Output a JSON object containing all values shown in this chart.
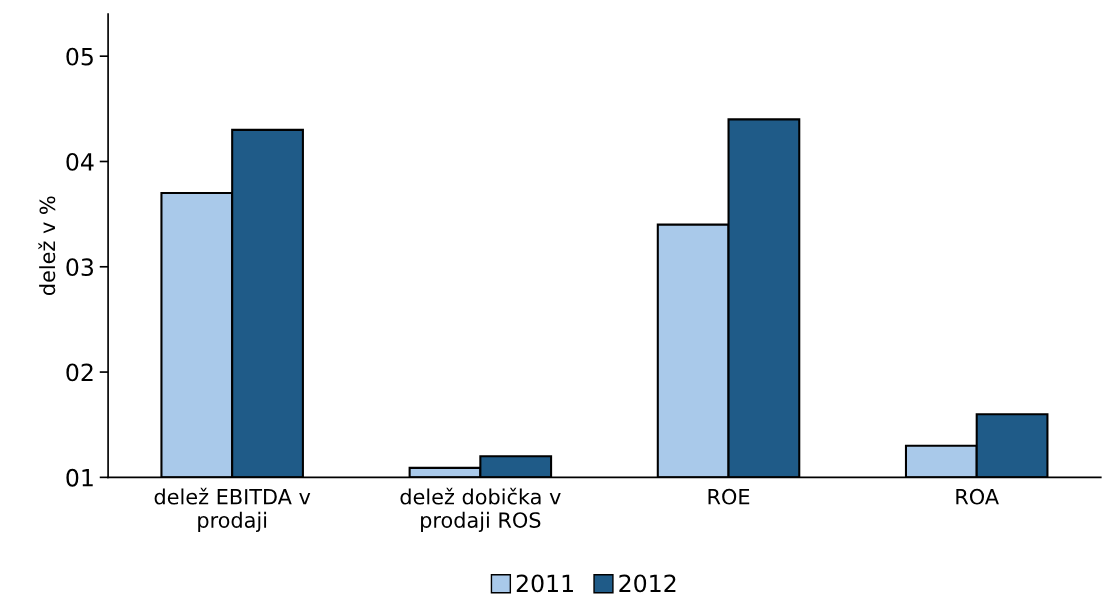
{
  "chart_data": {
    "type": "bar",
    "ylabel": "delež v %",
    "categories": [
      "delež EBITDA v\nprodaji",
      "delež dobička v\nprodaji ROS",
      "ROE",
      "ROA"
    ],
    "series": [
      {
        "name": "2011",
        "color": "#a9c9ea",
        "values": [
          3.7,
          1.09,
          3.4,
          1.3
        ]
      },
      {
        "name": "2012",
        "color": "#1f5b88",
        "values": [
          4.3,
          1.2,
          4.4,
          1.6
        ]
      }
    ],
    "ylim": [
      1,
      5.4
    ],
    "yticks": [
      {
        "value": 1,
        "label": "01"
      },
      {
        "value": 2,
        "label": "02"
      },
      {
        "value": 3,
        "label": "03"
      },
      {
        "value": 4,
        "label": "04"
      },
      {
        "value": 5,
        "label": "05"
      }
    ],
    "grid": false,
    "legend": "bottom"
  }
}
